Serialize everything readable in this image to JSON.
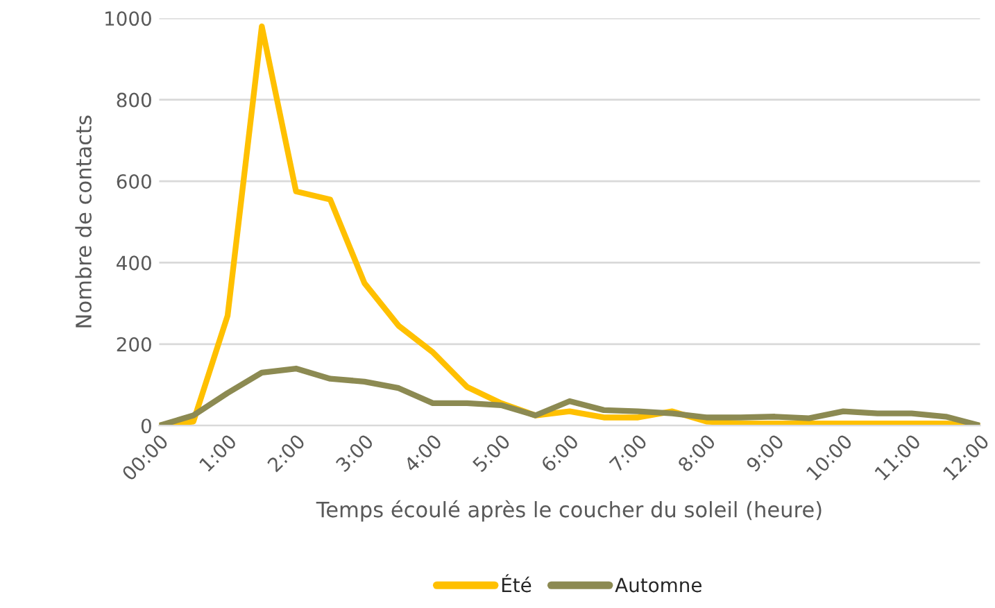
{
  "chart_data": {
    "type": "line",
    "xlabel": "Temps écoulé après le coucher du soleil (heure)",
    "ylabel": "Nombre de contacts",
    "x": [
      0,
      0.5,
      1,
      1.5,
      2,
      2.5,
      3,
      3.5,
      4,
      4.5,
      5,
      5.5,
      6,
      6.5,
      7,
      7.5,
      8,
      8.5,
      9,
      9.5,
      10,
      10.5,
      11,
      11.5,
      12
    ],
    "series": [
      {
        "name": "Été",
        "color": "#ffc000",
        "values": [
          0,
          10,
          270,
          980,
          575,
          555,
          350,
          245,
          180,
          95,
          55,
          25,
          35,
          20,
          20,
          35,
          10,
          5,
          5,
          5,
          5,
          5,
          5,
          5,
          0
        ]
      },
      {
        "name": "Automne",
        "color": "#8c8a52",
        "values": [
          0,
          25,
          80,
          130,
          140,
          115,
          108,
          92,
          55,
          55,
          50,
          25,
          60,
          38,
          35,
          30,
          20,
          20,
          22,
          18,
          35,
          30,
          30,
          22,
          0
        ]
      }
    ],
    "xlim": [
      0,
      12
    ],
    "xticks": [
      {
        "value": 0,
        "label": "00:00"
      },
      {
        "value": 1,
        "label": "1:00"
      },
      {
        "value": 2,
        "label": "2:00"
      },
      {
        "value": 3,
        "label": "3:00"
      },
      {
        "value": 4,
        "label": "4:00"
      },
      {
        "value": 5,
        "label": "5:00"
      },
      {
        "value": 6,
        "label": "6:00"
      },
      {
        "value": 7,
        "label": "7:00"
      },
      {
        "value": 8,
        "label": "8:00"
      },
      {
        "value": 9,
        "label": "9:00"
      },
      {
        "value": 10,
        "label": "10:00"
      },
      {
        "value": 11,
        "label": "11:00"
      },
      {
        "value": 12,
        "label": "12:00"
      }
    ],
    "ylim": [
      0,
      1000
    ],
    "yticks": [
      0,
      200,
      400,
      600,
      800,
      1000
    ],
    "grid": "y",
    "legend": "bottom",
    "marker": "none",
    "line_style": "solid"
  }
}
